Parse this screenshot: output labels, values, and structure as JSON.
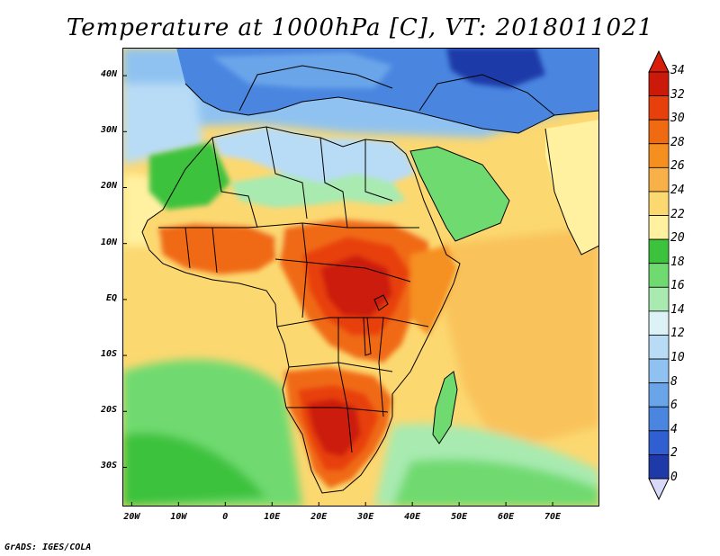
{
  "title": "Temperature at 1000hPa [C], VT: 2018011021",
  "credit": "GrADS: IGES/COLA",
  "map": {
    "projection": "latlon",
    "lon_range": [
      -22,
      80
    ],
    "lat_range": [
      -37,
      45
    ],
    "lon_ticks": [
      {
        "value": -20,
        "label": "20W"
      },
      {
        "value": -10,
        "label": "10W"
      },
      {
        "value": 0,
        "label": "0"
      },
      {
        "value": 10,
        "label": "10E"
      },
      {
        "value": 20,
        "label": "20E"
      },
      {
        "value": 30,
        "label": "30E"
      },
      {
        "value": 40,
        "label": "40E"
      },
      {
        "value": 50,
        "label": "50E"
      },
      {
        "value": 60,
        "label": "60E"
      },
      {
        "value": 70,
        "label": "70E"
      }
    ],
    "lat_ticks": [
      {
        "value": 40,
        "label": "40N"
      },
      {
        "value": 30,
        "label": "30N"
      },
      {
        "value": 20,
        "label": "20N"
      },
      {
        "value": 10,
        "label": "10N"
      },
      {
        "value": 0,
        "label": "EQ"
      },
      {
        "value": -10,
        "label": "10S"
      },
      {
        "value": -20,
        "label": "20S"
      },
      {
        "value": -30,
        "label": "30S"
      }
    ]
  },
  "colorbar": {
    "levels": [
      0,
      2,
      4,
      6,
      8,
      10,
      12,
      14,
      16,
      18,
      20,
      22,
      24,
      26,
      28,
      30,
      32,
      34
    ],
    "labels": [
      "34",
      "32",
      "30",
      "28",
      "26",
      "24",
      "22",
      "20",
      "18",
      "16",
      "14",
      "12",
      "10",
      "8",
      "6",
      "4",
      "2",
      "0"
    ],
    "colors": [
      "#0f1a6e",
      "#1e3aa8",
      "#2f5fd0",
      "#4a86e0",
      "#6aa5ea",
      "#8fc2f0",
      "#b8dcf6",
      "#dcf2f6",
      "#a8eab0",
      "#6fda70",
      "#3cc23c",
      "#fff1a0",
      "#fcd871",
      "#f8b148",
      "#f59020",
      "#f06a12",
      "#e8400c",
      "#cc1a0a"
    ],
    "under_color": "#d8d8f8",
    "over_color": "#d81e0a"
  },
  "colors": {
    "ocean_tropical": "#fcd871",
    "ocean_mid": "#fff1a0",
    "ocean_cool": "#6fda70",
    "sahara": "#b8dcf6",
    "sahel": "#f8b148",
    "central_hot": "#e8400c",
    "south_hot": "#cc1a0a",
    "europe": "#4a86e0",
    "mountains": "#1e3aa8",
    "country_line": "#000000"
  }
}
